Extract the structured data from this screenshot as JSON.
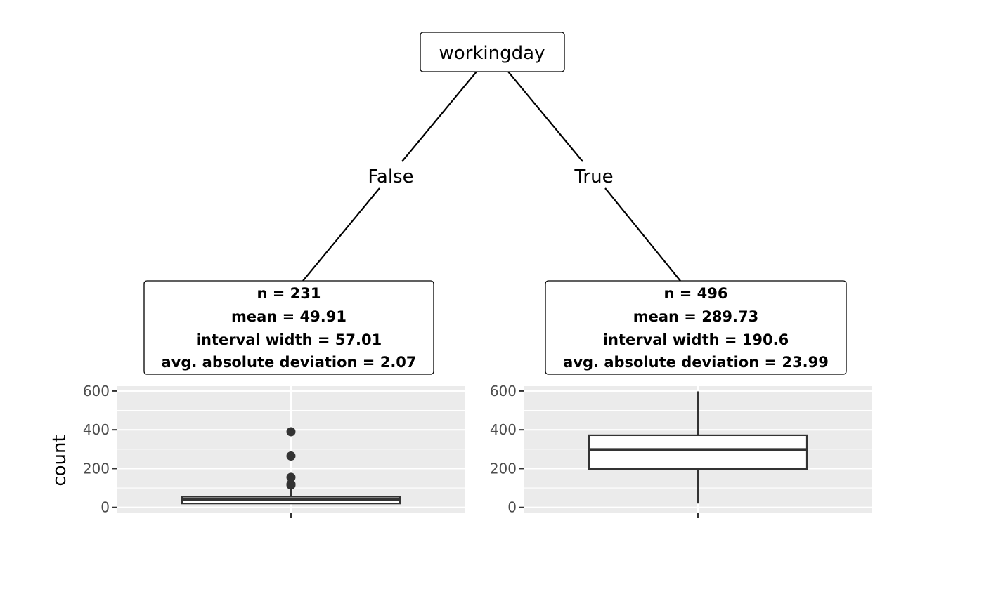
{
  "tree": {
    "root": {
      "label": "workingday"
    },
    "edges": [
      {
        "label": "False"
      },
      {
        "label": "True"
      }
    ],
    "leaves": [
      {
        "n_text": "n = 231",
        "mean_text": "mean = 49.91",
        "interval_text": "interval width = 57.01",
        "aad_text": "avg. absolute deviation = 2.07"
      },
      {
        "n_text": "n = 496",
        "mean_text": "mean = 289.73",
        "interval_text": "interval width = 190.6",
        "aad_text": "avg. absolute deviation = 23.99"
      }
    ]
  },
  "chart_data": [
    {
      "type": "boxplot",
      "ylabel": "count",
      "ylim": [
        -30,
        625
      ],
      "yticks": [
        0,
        200,
        400,
        600
      ],
      "grid": true,
      "box": {
        "whisker_low": 20,
        "q1": 20,
        "median": 40,
        "q3": 55,
        "whisker_high": 100,
        "outliers": [
          115,
          120,
          155,
          265,
          390
        ]
      }
    },
    {
      "type": "boxplot",
      "ylabel": "",
      "ylim": [
        -30,
        625
      ],
      "yticks": [
        0,
        200,
        400,
        600
      ],
      "grid": true,
      "box": {
        "whisker_low": 20,
        "q1": 198,
        "median": 297,
        "q3": 372,
        "whisker_high": 598,
        "outliers": []
      }
    }
  ]
}
